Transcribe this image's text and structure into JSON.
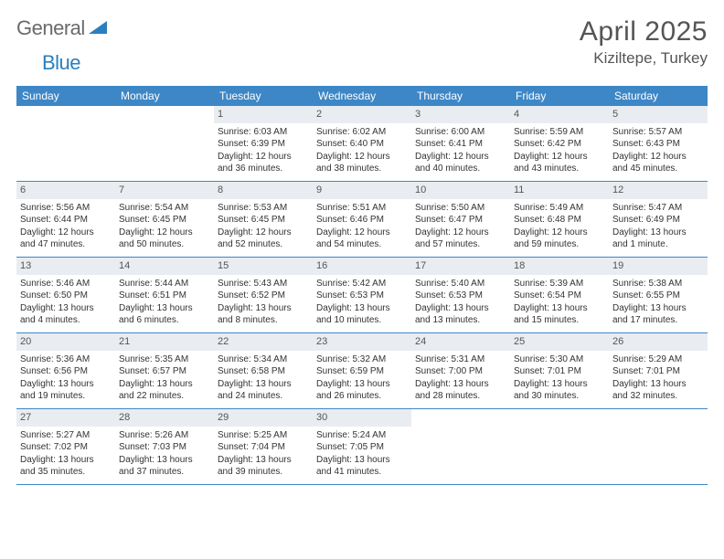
{
  "logo": {
    "word1": "General",
    "word2": "Blue"
  },
  "title": "April 2025",
  "location": "Kiziltepe, Turkey",
  "colors": {
    "header_bg": "#3d87c7",
    "header_text": "#ffffff",
    "daynum_bg": "#e9edf1",
    "divider": "#3d87c7",
    "body_text": "#333333",
    "title_text": "#555555",
    "logo_gray": "#6a6a6a",
    "logo_blue": "#2a7fbf"
  },
  "day_headers": [
    "Sunday",
    "Monday",
    "Tuesday",
    "Wednesday",
    "Thursday",
    "Friday",
    "Saturday"
  ],
  "weeks": [
    [
      {
        "n": "",
        "empty": true
      },
      {
        "n": "",
        "empty": true
      },
      {
        "n": "1",
        "sr": "6:03 AM",
        "ss": "6:39 PM",
        "dl": "12 hours and 36 minutes."
      },
      {
        "n": "2",
        "sr": "6:02 AM",
        "ss": "6:40 PM",
        "dl": "12 hours and 38 minutes."
      },
      {
        "n": "3",
        "sr": "6:00 AM",
        "ss": "6:41 PM",
        "dl": "12 hours and 40 minutes."
      },
      {
        "n": "4",
        "sr": "5:59 AM",
        "ss": "6:42 PM",
        "dl": "12 hours and 43 minutes."
      },
      {
        "n": "5",
        "sr": "5:57 AM",
        "ss": "6:43 PM",
        "dl": "12 hours and 45 minutes."
      }
    ],
    [
      {
        "n": "6",
        "sr": "5:56 AM",
        "ss": "6:44 PM",
        "dl": "12 hours and 47 minutes."
      },
      {
        "n": "7",
        "sr": "5:54 AM",
        "ss": "6:45 PM",
        "dl": "12 hours and 50 minutes."
      },
      {
        "n": "8",
        "sr": "5:53 AM",
        "ss": "6:45 PM",
        "dl": "12 hours and 52 minutes."
      },
      {
        "n": "9",
        "sr": "5:51 AM",
        "ss": "6:46 PM",
        "dl": "12 hours and 54 minutes."
      },
      {
        "n": "10",
        "sr": "5:50 AM",
        "ss": "6:47 PM",
        "dl": "12 hours and 57 minutes."
      },
      {
        "n": "11",
        "sr": "5:49 AM",
        "ss": "6:48 PM",
        "dl": "12 hours and 59 minutes."
      },
      {
        "n": "12",
        "sr": "5:47 AM",
        "ss": "6:49 PM",
        "dl": "13 hours and 1 minute."
      }
    ],
    [
      {
        "n": "13",
        "sr": "5:46 AM",
        "ss": "6:50 PM",
        "dl": "13 hours and 4 minutes."
      },
      {
        "n": "14",
        "sr": "5:44 AM",
        "ss": "6:51 PM",
        "dl": "13 hours and 6 minutes."
      },
      {
        "n": "15",
        "sr": "5:43 AM",
        "ss": "6:52 PM",
        "dl": "13 hours and 8 minutes."
      },
      {
        "n": "16",
        "sr": "5:42 AM",
        "ss": "6:53 PM",
        "dl": "13 hours and 10 minutes."
      },
      {
        "n": "17",
        "sr": "5:40 AM",
        "ss": "6:53 PM",
        "dl": "13 hours and 13 minutes."
      },
      {
        "n": "18",
        "sr": "5:39 AM",
        "ss": "6:54 PM",
        "dl": "13 hours and 15 minutes."
      },
      {
        "n": "19",
        "sr": "5:38 AM",
        "ss": "6:55 PM",
        "dl": "13 hours and 17 minutes."
      }
    ],
    [
      {
        "n": "20",
        "sr": "5:36 AM",
        "ss": "6:56 PM",
        "dl": "13 hours and 19 minutes."
      },
      {
        "n": "21",
        "sr": "5:35 AM",
        "ss": "6:57 PM",
        "dl": "13 hours and 22 minutes."
      },
      {
        "n": "22",
        "sr": "5:34 AM",
        "ss": "6:58 PM",
        "dl": "13 hours and 24 minutes."
      },
      {
        "n": "23",
        "sr": "5:32 AM",
        "ss": "6:59 PM",
        "dl": "13 hours and 26 minutes."
      },
      {
        "n": "24",
        "sr": "5:31 AM",
        "ss": "7:00 PM",
        "dl": "13 hours and 28 minutes."
      },
      {
        "n": "25",
        "sr": "5:30 AM",
        "ss": "7:01 PM",
        "dl": "13 hours and 30 minutes."
      },
      {
        "n": "26",
        "sr": "5:29 AM",
        "ss": "7:01 PM",
        "dl": "13 hours and 32 minutes."
      }
    ],
    [
      {
        "n": "27",
        "sr": "5:27 AM",
        "ss": "7:02 PM",
        "dl": "13 hours and 35 minutes."
      },
      {
        "n": "28",
        "sr": "5:26 AM",
        "ss": "7:03 PM",
        "dl": "13 hours and 37 minutes."
      },
      {
        "n": "29",
        "sr": "5:25 AM",
        "ss": "7:04 PM",
        "dl": "13 hours and 39 minutes."
      },
      {
        "n": "30",
        "sr": "5:24 AM",
        "ss": "7:05 PM",
        "dl": "13 hours and 41 minutes."
      },
      {
        "n": "",
        "empty": true
      },
      {
        "n": "",
        "empty": true
      },
      {
        "n": "",
        "empty": true
      }
    ]
  ],
  "labels": {
    "sunrise": "Sunrise:",
    "sunset": "Sunset:",
    "daylight": "Daylight:"
  }
}
